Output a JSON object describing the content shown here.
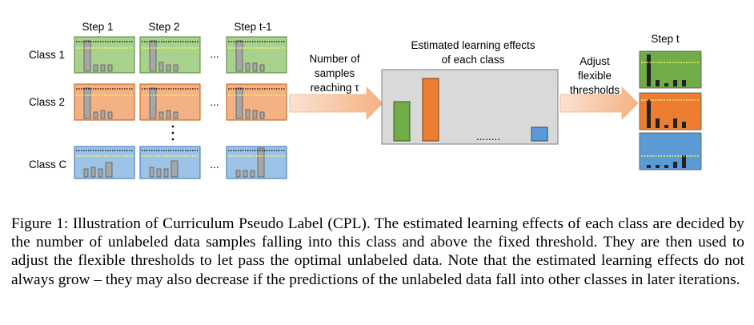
{
  "figure": {
    "step_labels": [
      "Step 1",
      "Step 2",
      "Step t-1"
    ],
    "class_labels": [
      "Class 1",
      "Class 2",
      "Class C"
    ],
    "ellipsis_h": "...",
    "ellipsis_v": ":",
    "arrow1_lines": [
      "Number of",
      "samples",
      "reaching τ"
    ],
    "middle_title_lines": [
      "Estimated learning effects",
      "of each class"
    ],
    "middle_dots": "........",
    "arrow2_lines": [
      "Adjust",
      "flexible",
      "thresholds"
    ],
    "step_t_label": "Step t",
    "colors": {
      "green_fill": "#a9d18e",
      "green_edge": "#548235",
      "orange_fill": "#f4b183",
      "orange_edge": "#c55a11",
      "blue_fill": "#9dc3e6",
      "blue_edge": "#2e75b6",
      "bar_gray": "#a6a6a6",
      "arrow_fill": "#f8cbad",
      "green_solid": "#70ad47",
      "orange_solid": "#ed7d31",
      "blue_solid": "#5b9bd5"
    }
  },
  "caption": "Figure 1: Illustration of Curriculum Pseudo Label (CPL). The estimated learning effects of each class are decided by the number of unlabeled data samples falling into this class and above the fixed threshold. They are then used to adjust the flexible thresholds to let pass the optimal unlabeled data. Note that the estimated learning effects do not always grow – they may also decrease if the predictions of the unlabeled data fall into other classes in later iterations."
}
